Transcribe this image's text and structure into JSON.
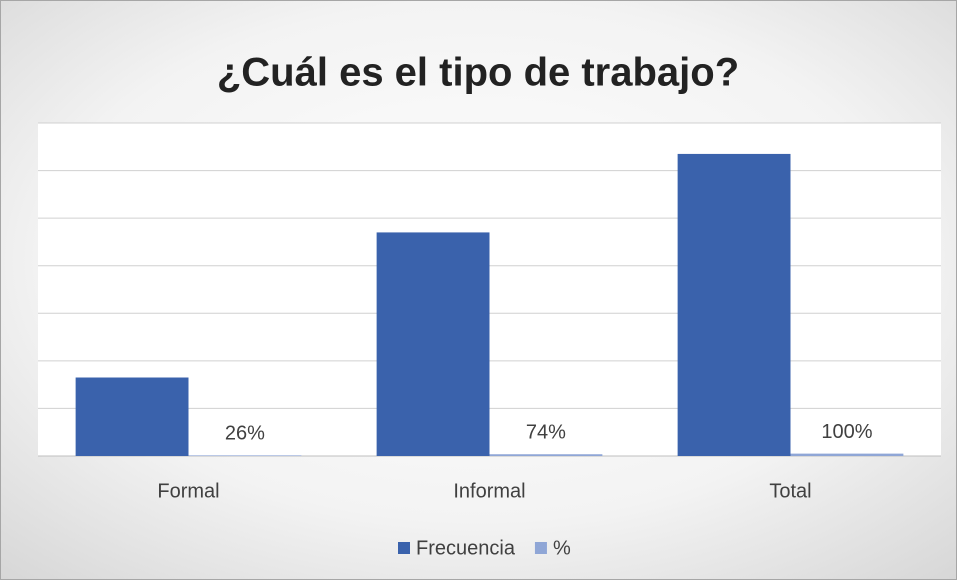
{
  "chart_data": {
    "type": "bar",
    "title": "¿Cuál es el tipo de trabajo?",
    "categories": [
      "Formal",
      "Informal",
      "Total"
    ],
    "series": [
      {
        "name": "Frecuencia",
        "color": "#3a62ac",
        "values": [
          33,
          94,
          127
        ]
      },
      {
        "name": "%",
        "color": "#8fa6d6",
        "values": [
          0.26,
          0.74,
          1
        ],
        "value_labels": [
          "26%",
          "74%",
          "100%"
        ]
      }
    ],
    "ylim": [
      0,
      140
    ],
    "yticks": [
      0,
      20,
      40,
      60,
      80,
      100,
      120,
      140
    ],
    "grid": true,
    "legend": "bottom"
  }
}
